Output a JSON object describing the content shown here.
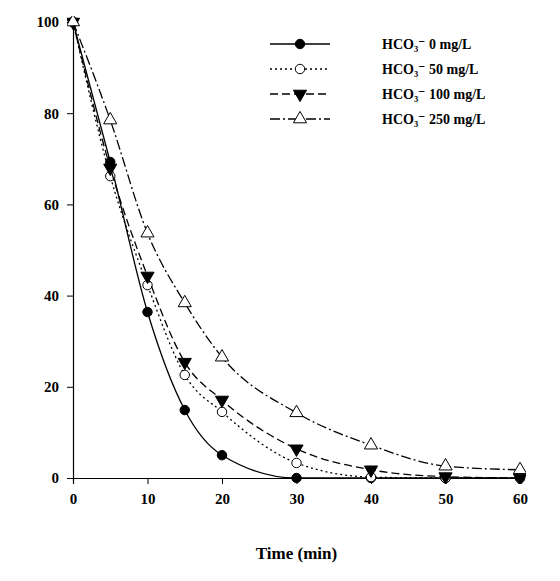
{
  "chart_data": {
    "type": "line",
    "x_label": "Time (min)",
    "x": [
      0,
      5,
      10,
      15,
      20,
      30,
      40,
      50,
      60
    ],
    "xlim": [
      0,
      60
    ],
    "xticks": [
      0,
      10,
      20,
      30,
      40,
      50,
      60
    ],
    "ylim": [
      0,
      100
    ],
    "yticks": [
      0,
      20,
      40,
      60,
      80,
      100
    ],
    "legend": "upper right",
    "series": [
      {
        "name": "HCO₃⁻ 0 mg/L",
        "color": "#000000",
        "marker": "circle",
        "line_style": "solid",
        "values": [
          100,
          69.3,
          36.4,
          14.9,
          5,
          0,
          0,
          0,
          0
        ]
      },
      {
        "name": "HCO₃⁻ 50 mg/L",
        "color": "#000000",
        "marker": "circle-open",
        "line_style": "dotted",
        "values": [
          100,
          66.2,
          42.3,
          22.6,
          14.5,
          3.3,
          0.2,
          0,
          0
        ]
      },
      {
        "name": "HCO₃⁻ 100 mg/L",
        "color": "#000000",
        "marker": "triangle-down",
        "line_style": "dashed",
        "values": [
          100,
          68,
          44.3,
          25.4,
          17.1,
          6.4,
          1.8,
          0.3,
          0
        ]
      },
      {
        "name": "HCO₃⁻ 250 mg/L",
        "color": "#000000",
        "marker": "triangle-up-open",
        "line_style": "dashdot",
        "values": [
          100,
          78.5,
          53.7,
          38.4,
          26.5,
          14.3,
          7.2,
          2.6,
          1.8
        ]
      }
    ]
  }
}
